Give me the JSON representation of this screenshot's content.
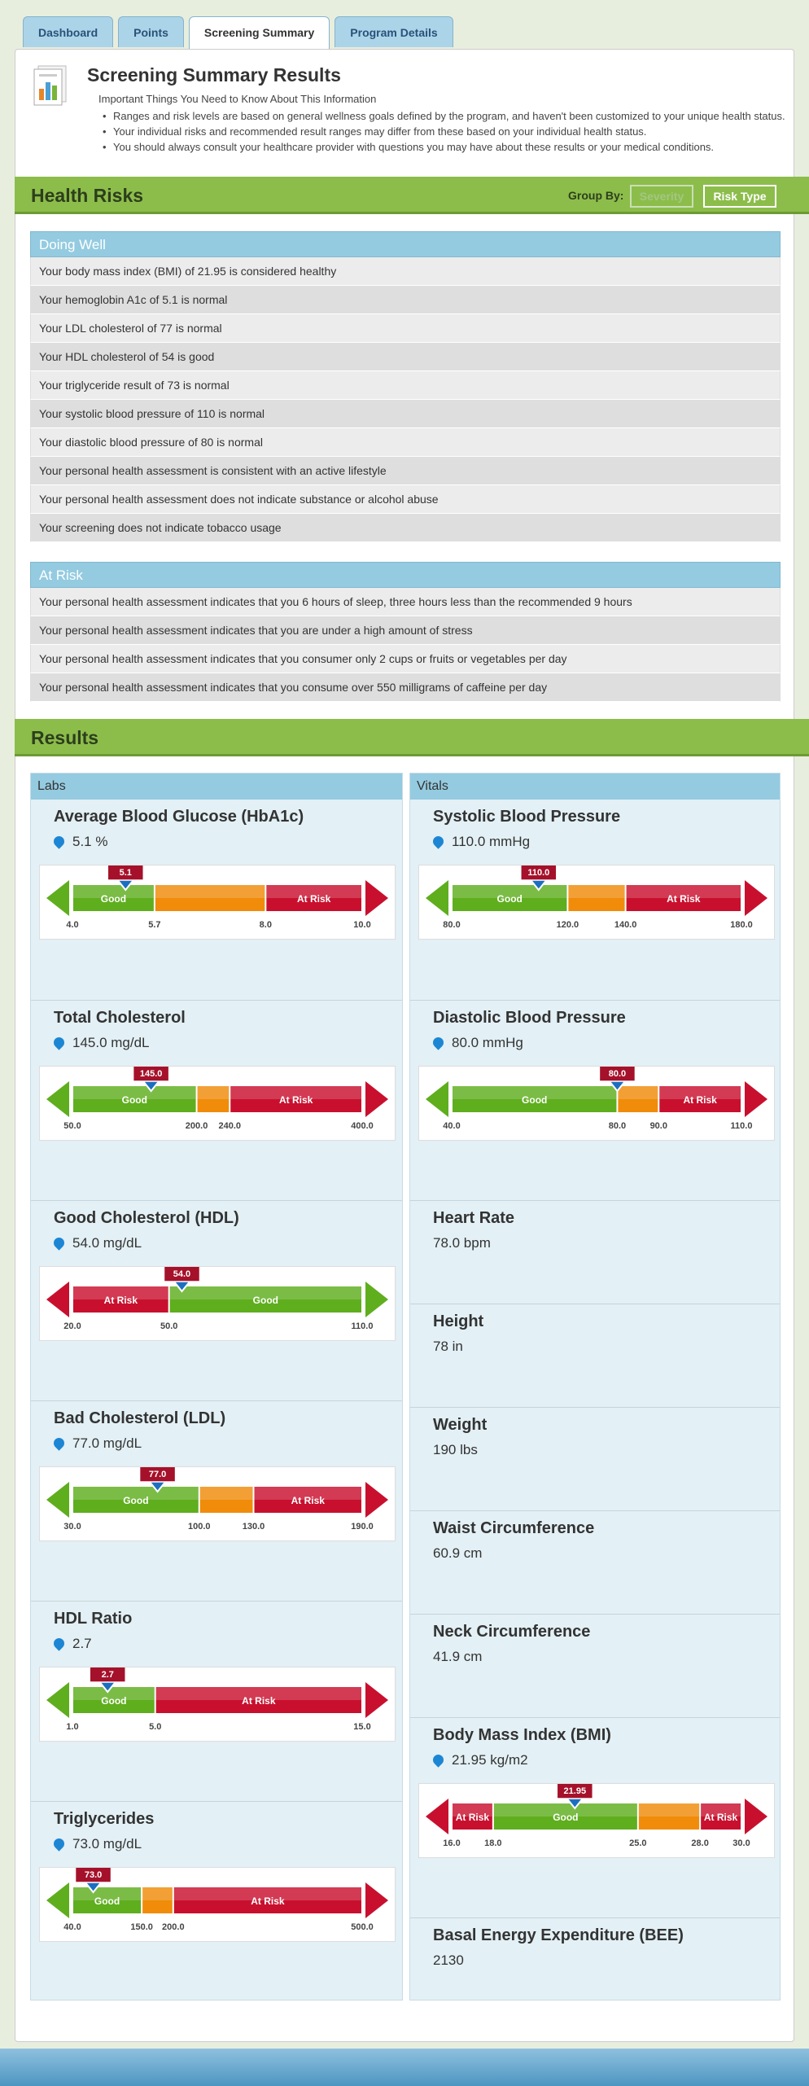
{
  "tabs": [
    {
      "label": "Dashboard"
    },
    {
      "label": "Points"
    },
    {
      "label": "Screening Summary"
    },
    {
      "label": "Program Details"
    }
  ],
  "summary": {
    "title": "Screening Summary Results",
    "subtitle": "Important Things You Need to Know About This Information",
    "bullets": [
      "Ranges and risk levels are based on general wellness goals defined by the program, and haven't been customized to your unique health status.",
      "Your individual risks and recommended result ranges may differ from these based on your individual health status.",
      "You should always consult your healthcare provider with questions you may have about these results or your medical conditions."
    ]
  },
  "health_risks": {
    "title": "Health Risks",
    "group_by_label": "Group By:",
    "severity_label": "Severity",
    "risk_type_label": "Risk Type",
    "doing_well": {
      "header": "Doing Well",
      "items": [
        "Your body mass index (BMI) of 21.95 is considered healthy",
        "Your hemoglobin A1c of 5.1 is normal",
        "Your LDL cholesterol of 77 is normal",
        "Your HDL cholesterol of 54 is good",
        "Your triglyceride result of 73 is normal",
        "Your systolic blood pressure of 110 is normal",
        "Your diastolic blood pressure of 80 is normal",
        "Your personal health assessment is consistent with an active lifestyle",
        "Your personal health assessment does not indicate substance or alcohol abuse",
        "Your screening does not indicate tobacco usage"
      ]
    },
    "at_risk": {
      "header": "At Risk",
      "items": [
        "Your personal health assessment indicates that you 6 hours of sleep, three hours less than the recommended  9 hours",
        "Your personal health assessment indicates that you are under a high amount of stress",
        "Your personal health assessment indicates that you consumer  only 2 cups or fruits or vegetables per day",
        "Your personal health assessment indicates that you consume over 550 milligrams of caffeine per day"
      ]
    }
  },
  "results": {
    "title": "Results",
    "labs_header": "Labs",
    "vitals_header": "Vitals",
    "labs": [
      {
        "name": "Average Blood Glucose (HbA1c)",
        "value": "5.1 %",
        "marker": "5.1",
        "marker_value": 5.1,
        "gauge": {
          "min": 4.0,
          "max": 10.0,
          "ticks": [
            "4.0",
            "5.7",
            "8.0",
            "10.0"
          ],
          "segments": [
            {
              "from": 4.0,
              "to": 5.7,
              "color": "green",
              "label": "Good"
            },
            {
              "from": 5.7,
              "to": 8.0,
              "color": "orange",
              "label": ""
            },
            {
              "from": 8.0,
              "to": 10.0,
              "color": "red",
              "label": "At Risk"
            }
          ]
        }
      },
      {
        "name": "Total Cholesterol",
        "value": "145.0 mg/dL",
        "marker": "145.0",
        "marker_value": 145.0,
        "gauge": {
          "min": 50.0,
          "max": 400.0,
          "ticks": [
            "50.0",
            "200.0",
            "240.0",
            "400.0"
          ],
          "segments": [
            {
              "from": 50,
              "to": 200,
              "color": "green",
              "label": "Good"
            },
            {
              "from": 200,
              "to": 240,
              "color": "orange",
              "label": ""
            },
            {
              "from": 240,
              "to": 400,
              "color": "red",
              "label": "At Risk"
            }
          ]
        }
      },
      {
        "name": "Good Cholesterol (HDL)",
        "value": "54.0 mg/dL",
        "marker": "54.0",
        "marker_value": 54.0,
        "gauge": {
          "min": 20.0,
          "max": 110.0,
          "ticks": [
            "20.0",
            "50.0",
            "110.0"
          ],
          "segments": [
            {
              "from": 20,
              "to": 50,
              "color": "red",
              "label": "At Risk"
            },
            {
              "from": 50,
              "to": 110,
              "color": "green",
              "label": "Good"
            }
          ]
        }
      },
      {
        "name": "Bad Cholesterol (LDL)",
        "value": "77.0 mg/dL",
        "marker": "77.0",
        "marker_value": 77.0,
        "gauge": {
          "min": 30.0,
          "max": 190.0,
          "ticks": [
            "30.0",
            "100.0",
            "130.0",
            "190.0"
          ],
          "segments": [
            {
              "from": 30,
              "to": 100,
              "color": "green",
              "label": "Good"
            },
            {
              "from": 100,
              "to": 130,
              "color": "orange",
              "label": ""
            },
            {
              "from": 130,
              "to": 190,
              "color": "red",
              "label": "At Risk"
            }
          ]
        }
      },
      {
        "name": "HDL Ratio",
        "value": "2.7",
        "marker": "2.7",
        "marker_value": 2.7,
        "gauge": {
          "min": 1.0,
          "max": 15.0,
          "ticks": [
            "1.0",
            "5.0",
            "15.0"
          ],
          "segments": [
            {
              "from": 1,
              "to": 5,
              "color": "green",
              "label": "Good"
            },
            {
              "from": 5,
              "to": 15,
              "color": "red",
              "label": "At Risk"
            }
          ]
        }
      },
      {
        "name": "Triglycerides",
        "value": "73.0 mg/dL",
        "marker": "73.0",
        "marker_value": 73.0,
        "gauge": {
          "min": 40.0,
          "max": 500.0,
          "ticks": [
            "40.0",
            "150.0",
            "200.0",
            "500.0"
          ],
          "segments": [
            {
              "from": 40,
              "to": 150,
              "color": "green",
              "label": "Good"
            },
            {
              "from": 150,
              "to": 200,
              "color": "orange",
              "label": ""
            },
            {
              "from": 200,
              "to": 500,
              "color": "red",
              "label": "At Risk"
            }
          ]
        }
      }
    ],
    "vitals": [
      {
        "name": "Systolic Blood Pressure",
        "value": "110.0 mmHg",
        "pin": true,
        "marker": "110.0",
        "marker_value": 110.0,
        "gauge": {
          "min": 80.0,
          "max": 180.0,
          "ticks": [
            "80.0",
            "120.0",
            "140.0",
            "180.0"
          ],
          "segments": [
            {
              "from": 80,
              "to": 120,
              "color": "green",
              "label": "Good"
            },
            {
              "from": 120,
              "to": 140,
              "color": "orange",
              "label": ""
            },
            {
              "from": 140,
              "to": 180,
              "color": "red",
              "label": "At Risk"
            }
          ]
        }
      },
      {
        "name": "Diastolic Blood Pressure",
        "value": "80.0 mmHg",
        "pin": true,
        "marker": "80.0",
        "marker_value": 80.0,
        "gauge": {
          "min": 40.0,
          "max": 110.0,
          "ticks": [
            "40.0",
            "80.0",
            "90.0",
            "110.0"
          ],
          "segments": [
            {
              "from": 40,
              "to": 80,
              "color": "green",
              "label": "Good"
            },
            {
              "from": 80,
              "to": 90,
              "color": "orange",
              "label": ""
            },
            {
              "from": 90,
              "to": 110,
              "color": "red",
              "label": "At Risk"
            }
          ]
        }
      },
      {
        "name": "Heart Rate",
        "value": "78.0 bpm",
        "pin": false
      },
      {
        "name": "Height",
        "value": "78 in",
        "pin": false
      },
      {
        "name": "Weight",
        "value": "190 lbs",
        "pin": false
      },
      {
        "name": "Waist Circumference",
        "value": "60.9 cm",
        "pin": false
      },
      {
        "name": "Neck Circumference",
        "value": "41.9 cm",
        "pin": false
      },
      {
        "name": "Body Mass Index (BMI)",
        "value": "21.95 kg/m2",
        "pin": true,
        "marker": "21.95",
        "marker_value": 21.95,
        "gauge": {
          "min": 16.0,
          "max": 30.0,
          "ticks": [
            "16.0",
            "18.0",
            "25.0",
            "28.0",
            "30.0"
          ],
          "segments": [
            {
              "from": 16,
              "to": 18,
              "color": "red",
              "label": "At Risk"
            },
            {
              "from": 18,
              "to": 25,
              "color": "green",
              "label": "Good"
            },
            {
              "from": 25,
              "to": 28,
              "color": "orange",
              "label": ""
            },
            {
              "from": 28,
              "to": 30,
              "color": "red",
              "label": "At Risk"
            }
          ]
        }
      },
      {
        "name": "Basal Energy Expenditure (BEE)",
        "value": "2130",
        "pin": false
      }
    ]
  },
  "colors": {
    "green": "#5fae1e",
    "orange": "#f08c0a",
    "red": "#c8102e",
    "accent": "#8cbd4b",
    "header_blue": "#94cbe0"
  }
}
